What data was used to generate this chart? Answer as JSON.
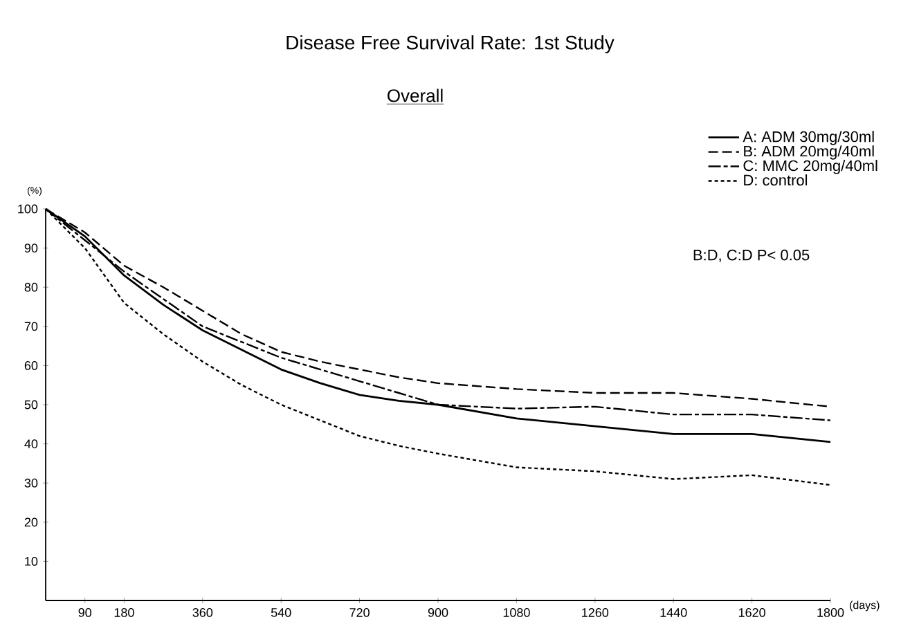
{
  "chart_data": {
    "type": "line",
    "title": "Disease Free Survival Rate: 1st Study",
    "subtitle": "Overall",
    "xlabel": "(days)",
    "ylabel": "(%)",
    "xlim": [
      0,
      1800
    ],
    "ylim": [
      0,
      100
    ],
    "xticks": [
      90,
      180,
      360,
      540,
      720,
      900,
      1080,
      1260,
      1440,
      1620,
      1800
    ],
    "yticks": [
      10,
      20,
      30,
      40,
      50,
      60,
      70,
      80,
      90,
      100
    ],
    "x": [
      0,
      90,
      180,
      270,
      360,
      450,
      540,
      630,
      720,
      810,
      900,
      1080,
      1260,
      1440,
      1620,
      1800
    ],
    "series": [
      {
        "name": "A: ADM 30mg/30ml",
        "color": "#000000",
        "line_style": "solid",
        "values": [
          100,
          93,
          83,
          75.5,
          69,
          64,
          59,
          55.5,
          52.5,
          51,
          50,
          46.5,
          44.5,
          42.5,
          42.5,
          40.5
        ]
      },
      {
        "name": "B: ADM 20mg/40ml",
        "color": "#000000",
        "line_style": "dashed",
        "values": [
          100,
          94,
          85.5,
          80,
          74,
          68,
          63.5,
          61,
          59,
          57,
          55.5,
          54,
          53,
          53,
          51.5,
          49.5
        ]
      },
      {
        "name": "C: MMC 20mg/40ml",
        "color": "#000000",
        "line_style": "dashdot",
        "values": [
          100,
          92,
          84,
          77,
          70,
          66,
          62,
          59,
          56,
          53,
          50,
          49,
          49.5,
          47.5,
          47.5,
          46
        ]
      },
      {
        "name": "D: control",
        "color": "#000000",
        "line_style": "dotted",
        "values": [
          100,
          90,
          76,
          68,
          61,
          55,
          50,
          46,
          42,
          39.5,
          37.5,
          34,
          33,
          31,
          32,
          29.5
        ]
      }
    ],
    "legend": "top right",
    "grid": false,
    "marker": "none",
    "annotations": [
      "B:D, C:D    P< 0.05"
    ]
  }
}
